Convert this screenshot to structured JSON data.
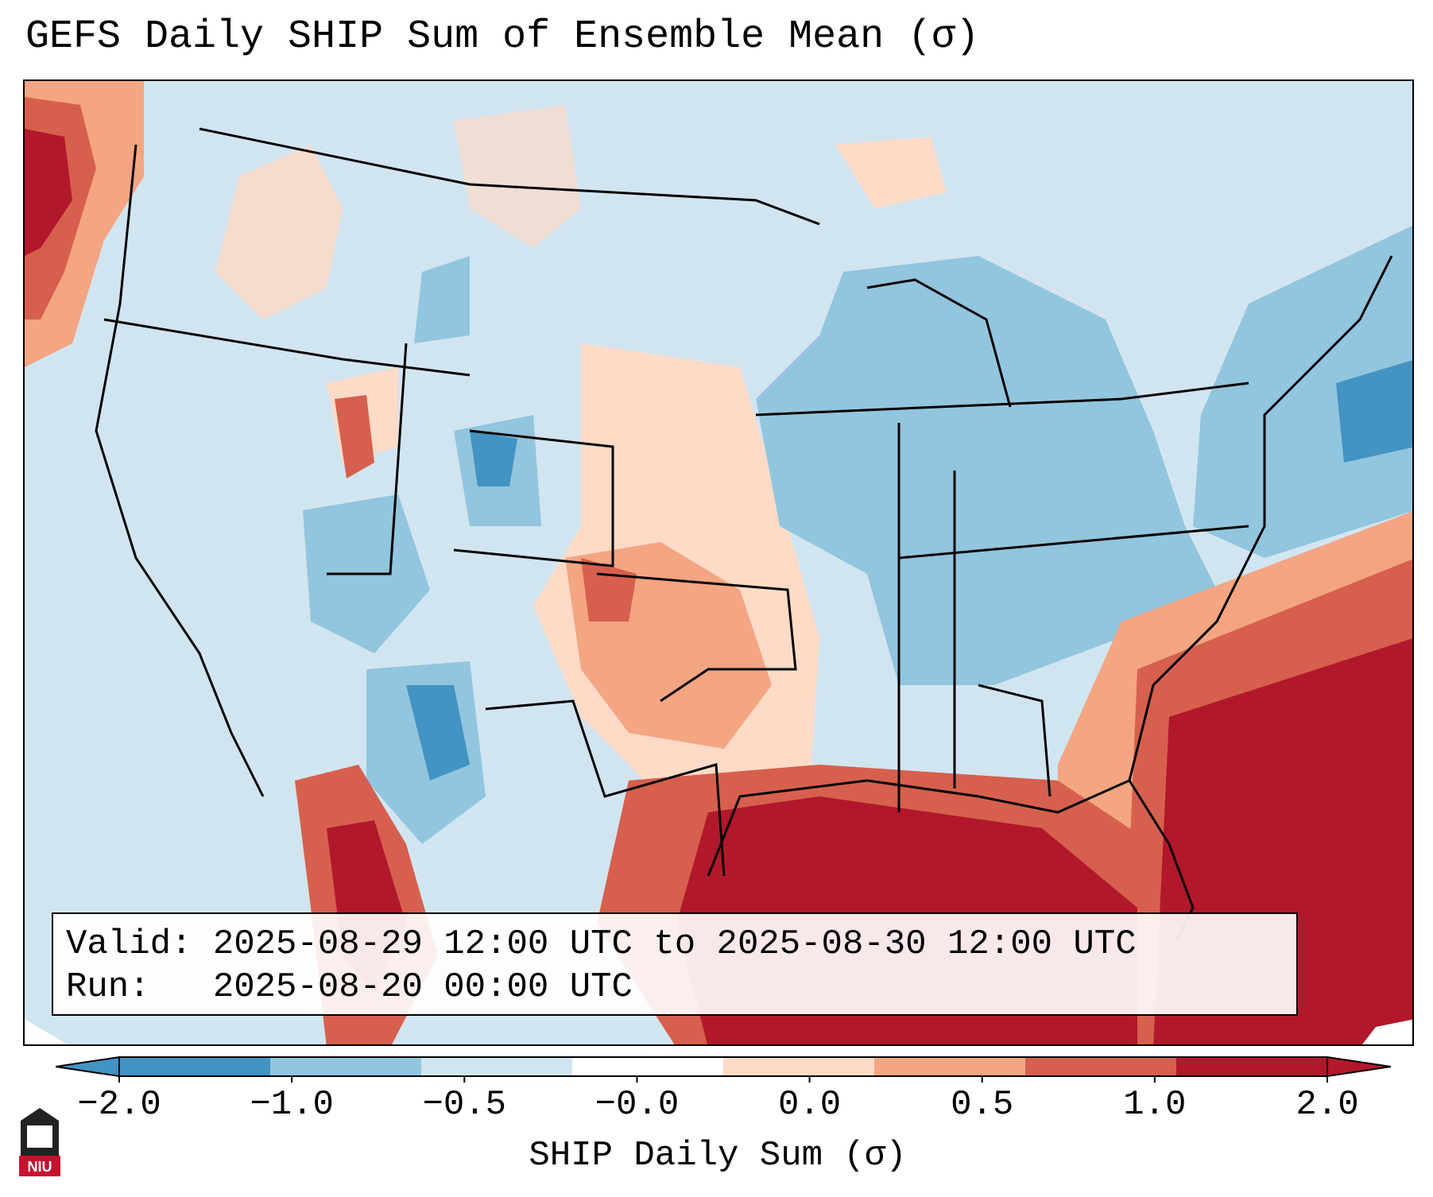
{
  "title": "GEFS Daily SHIP Sum of Ensemble Mean (σ)",
  "info": {
    "valid_line": "Valid: 2025-08-29 12:00 UTC to 2025-08-30 12:00 UTC",
    "run_line": "Run:   2025-08-20 00:00 UTC"
  },
  "colorbar": {
    "label": "SHIP Daily Sum (σ)",
    "ticks": [
      "−2.0",
      "−1.0",
      "−0.5",
      "−0.0",
      "0.0",
      "0.5",
      "1.0",
      "2.0"
    ],
    "colors": [
      "#4393c3",
      "#92c5de",
      "#d1e5f0",
      "#ffffff",
      "#fddbc7",
      "#f4a582",
      "#d6604d",
      "#b2182b"
    ],
    "extend": "both"
  },
  "legend_colors": {
    "strong_neg": "#4393c3",
    "neg": "#92c5de",
    "weak_neg": "#d1e5f0",
    "weak_pos": "#fddbc7",
    "pos": "#f4a582",
    "strong_pos": "#d6604d",
    "extreme_pos": "#b2182b"
  },
  "logo": {
    "text": "NIU",
    "color": "#c8102e"
  }
}
